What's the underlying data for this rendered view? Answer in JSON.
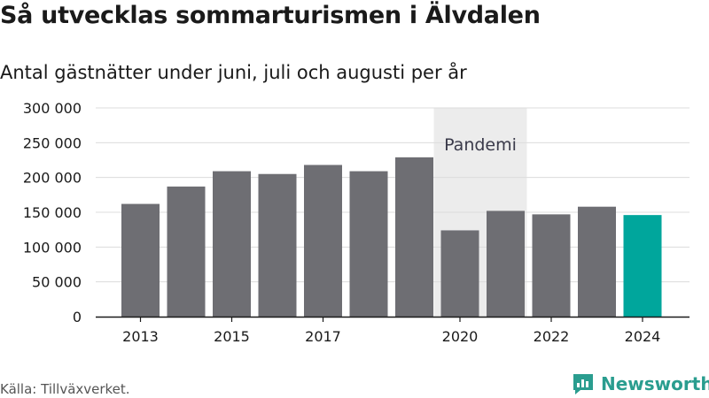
{
  "title": "Så utvecklas sommarturismen i Älvdalen",
  "subtitle": "Antal gästnätter under juni, juli och augusti per år",
  "source": "Källa: Tillväxverket.",
  "brand": {
    "name": "Newsworthy",
    "color": "#2a9d8f"
  },
  "chart_data": {
    "type": "bar",
    "categories": [
      "2013",
      "2014",
      "2015",
      "2016",
      "2017",
      "2018",
      "2019",
      "2020",
      "2021",
      "2022",
      "2023",
      "2024"
    ],
    "values": [
      162000,
      187000,
      209000,
      205000,
      218000,
      209000,
      229000,
      124000,
      152000,
      147000,
      158000,
      146000
    ],
    "highlight": "2024",
    "xtick_labels": [
      "2013",
      "2015",
      "2017",
      "2020",
      "2022",
      "2024"
    ],
    "ytick_labels": [
      "0",
      "50 000",
      "100 000",
      "150 000",
      "200 000",
      "250 000",
      "300 000"
    ],
    "yticks": [
      0,
      50000,
      100000,
      150000,
      200000,
      250000,
      300000
    ],
    "ylim": [
      0,
      300000
    ],
    "grid": true,
    "colors": {
      "bar": "#6e6e73",
      "highlight": "#00a69c",
      "band": "#ececec",
      "grid": "#dcdcdc",
      "axis": "#1a1a1a"
    },
    "annotation": {
      "label": "Pandemi",
      "from": "2020",
      "to": "2021"
    }
  }
}
